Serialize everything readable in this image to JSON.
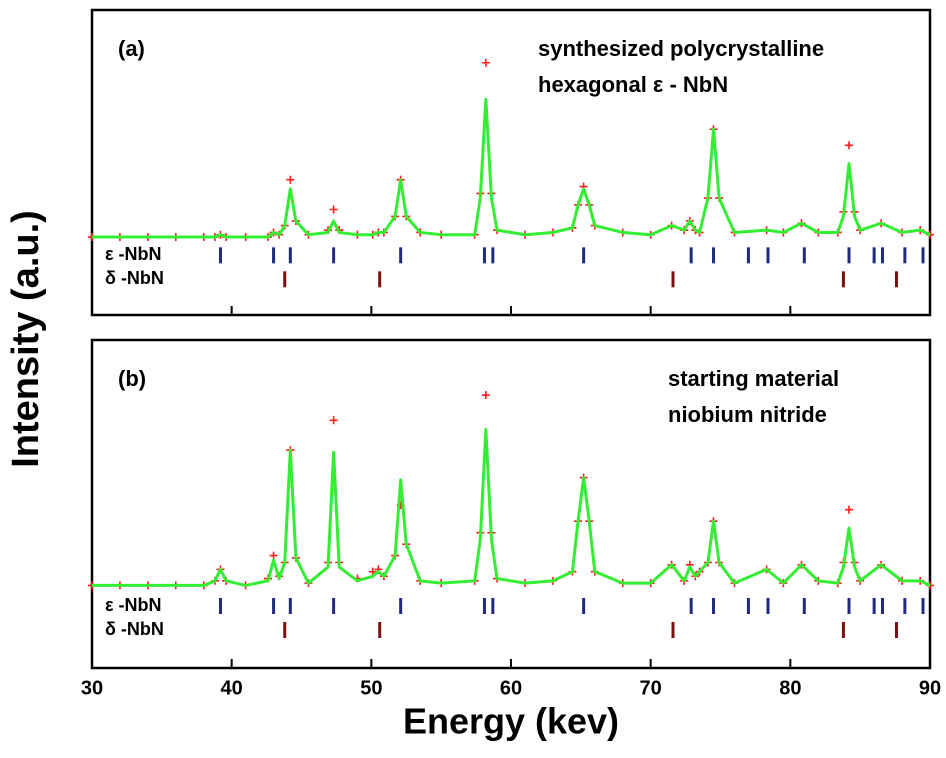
{
  "chart_data": [
    {
      "type": "line",
      "label": "(a)",
      "annotation": [
        "synthesized polycrystalline",
        "hexagonal ε - NbN"
      ],
      "ylabel": "Intensity (a.u.)",
      "xlim": [
        30,
        90
      ],
      "xticks": [
        30,
        40,
        50,
        60,
        70,
        80,
        90
      ],
      "ylim": [
        -33,
        100
      ],
      "x": [
        30,
        32,
        34,
        36,
        38,
        38.8,
        39.2,
        39.6,
        41,
        42.6,
        43,
        43.4,
        43.8,
        44.2,
        44.6,
        45.5,
        46.9,
        47.3,
        47.7,
        49,
        50.1,
        50.5,
        50.9,
        51.7,
        52.1,
        52.5,
        53.5,
        55,
        57.4,
        57.8,
        58.2,
        58.6,
        59,
        61,
        63,
        64.4,
        64.8,
        65.2,
        65.6,
        66,
        68,
        70,
        71.5,
        72.4,
        72.8,
        73.2,
        73.5,
        74.1,
        74.5,
        74.9,
        76,
        78.3,
        79.5,
        80.8,
        82,
        83.4,
        83.8,
        84.2,
        84.6,
        85,
        86.5,
        88,
        89.3,
        90
      ],
      "series": [
        {
          "color": "#ff1a1a",
          "marker": "+",
          "values": [
            1,
            1,
            1,
            1,
            1,
            1,
            2,
            1,
            1,
            1,
            3,
            2,
            6,
            26,
            8,
            2,
            4,
            13,
            4,
            2,
            2,
            3,
            3,
            10,
            26,
            10,
            3,
            2,
            2,
            20,
            77,
            20,
            4,
            2,
            3,
            5,
            15,
            23,
            15,
            6,
            3,
            2,
            6,
            4,
            8,
            4,
            3,
            18,
            48,
            18,
            3,
            4,
            3,
            7,
            3,
            3,
            12,
            41,
            12,
            4,
            7,
            3,
            4,
            2
          ]
        },
        {
          "color": "#33ee33",
          "values": [
            1,
            1,
            1,
            1,
            1,
            1,
            2,
            1,
            1,
            1,
            3,
            2,
            6,
            22,
            8,
            2,
            3,
            8,
            3,
            2,
            2,
            3,
            3,
            10,
            26,
            10,
            3,
            2,
            2,
            18,
            61,
            18,
            4,
            2,
            3,
            5,
            15,
            22,
            15,
            6,
            3,
            2,
            6,
            4,
            8,
            4,
            3,
            18,
            48,
            18,
            3,
            4,
            3,
            7,
            3,
            3,
            10,
            33,
            10,
            4,
            7,
            3,
            4,
            2
          ]
        }
      ],
      "reflections": [
        {
          "name": "ε -NbN",
          "color": "#1f2a80",
          "positions": [
            39.2,
            43.0,
            44.2,
            47.3,
            52.1,
            58.1,
            58.7,
            65.2,
            72.9,
            74.5,
            77.0,
            78.4,
            81.0,
            84.2,
            86.0,
            86.6,
            88.2,
            89.5
          ]
        },
        {
          "name": "δ -NbN",
          "color": "#7a1010",
          "positions": [
            43.8,
            50.6,
            71.6,
            83.8,
            87.6
          ]
        }
      ]
    },
    {
      "type": "line",
      "label": "(b)",
      "annotation": [
        "starting material",
        "niobium nitride"
      ],
      "xlabel": "Energy (kev)",
      "xlim": [
        30,
        90
      ],
      "xticks": [
        30,
        40,
        50,
        60,
        70,
        80,
        90
      ],
      "ylim": [
        -34,
        109
      ],
      "x": [
        30,
        32,
        34,
        36,
        38,
        38.8,
        39.2,
        39.6,
        41,
        42.6,
        43,
        43.4,
        43.8,
        44.2,
        44.6,
        45.5,
        46.9,
        47.3,
        47.7,
        49,
        50.1,
        50.5,
        50.9,
        51.7,
        52.1,
        52.5,
        53.5,
        55,
        57.4,
        57.8,
        58.2,
        58.6,
        59,
        61,
        63,
        64.4,
        64.8,
        65.2,
        65.6,
        66,
        68,
        70,
        71.5,
        72.4,
        72.8,
        73.2,
        73.5,
        74.1,
        74.5,
        74.9,
        76,
        78.3,
        79.5,
        80.8,
        82,
        83.4,
        83.8,
        84.2,
        84.6,
        85,
        86.5,
        88,
        89.3,
        90
      ],
      "series": [
        {
          "color": "#ff1a1a",
          "marker": "+",
          "values": [
            2,
            2,
            2,
            2,
            2,
            4,
            9,
            4,
            2,
            5,
            15,
            6,
            12,
            61,
            14,
            3,
            12,
            74,
            12,
            5,
            8,
            9,
            6,
            15,
            37,
            20,
            4,
            3,
            4,
            25,
            85,
            25,
            5,
            3,
            4,
            8,
            30,
            49,
            30,
            8,
            3,
            3,
            11,
            4,
            11,
            6,
            8,
            12,
            30,
            12,
            3,
            9,
            3,
            11,
            4,
            3,
            12,
            35,
            12,
            4,
            11,
            4,
            4,
            2
          ]
        },
        {
          "color": "#33ee33",
          "values": [
            2,
            2,
            2,
            2,
            2,
            4,
            9,
            4,
            2,
            4,
            13,
            5,
            12,
            61,
            14,
            3,
            10,
            60,
            10,
            4,
            6,
            8,
            6,
            15,
            48,
            20,
            4,
            3,
            4,
            22,
            70,
            22,
            5,
            3,
            4,
            8,
            30,
            49,
            30,
            8,
            3,
            3,
            11,
            4,
            10,
            6,
            8,
            12,
            30,
            12,
            3,
            9,
            3,
            11,
            4,
            3,
            10,
            27,
            10,
            4,
            11,
            4,
            4,
            2
          ]
        }
      ],
      "reflections": [
        {
          "name": "ε -NbN",
          "color": "#1f2a80",
          "positions": [
            39.2,
            43.0,
            44.2,
            47.3,
            52.1,
            58.1,
            58.7,
            65.2,
            72.9,
            74.5,
            77.0,
            78.4,
            81.0,
            84.2,
            86.0,
            86.6,
            88.2,
            89.5
          ]
        },
        {
          "name": "δ -NbN",
          "color": "#7a1010",
          "positions": [
            43.8,
            50.6,
            71.6,
            83.8,
            87.6
          ]
        }
      ]
    }
  ]
}
